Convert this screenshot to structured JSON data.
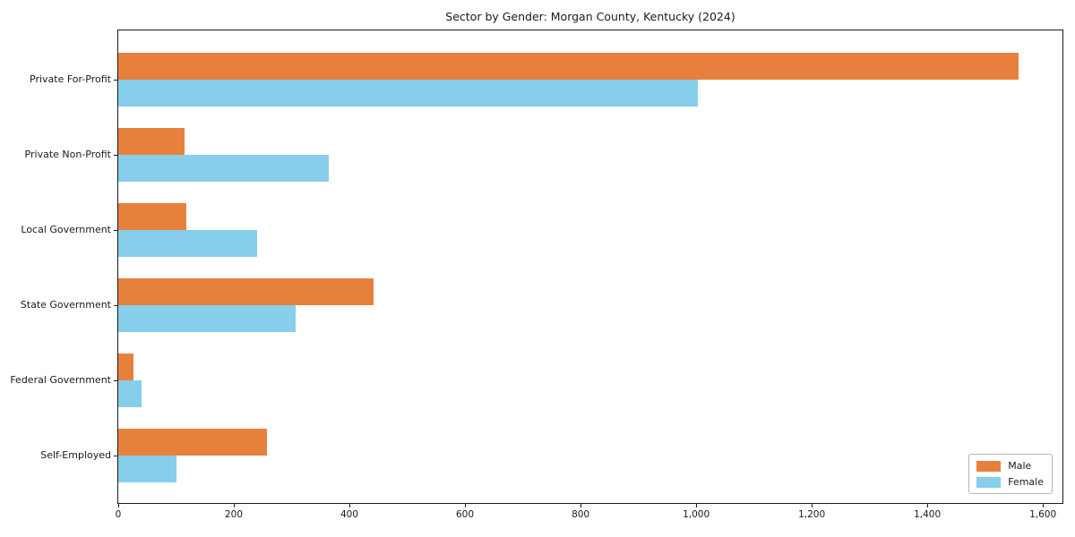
{
  "chart_data": {
    "type": "bar",
    "orientation": "horizontal",
    "title": "Sector by Gender: Morgan County, Kentucky (2024)",
    "categories": [
      "Private For-Profit",
      "Private Non-Profit",
      "Local Government",
      "State Government",
      "Federal Government",
      "Self-Employed"
    ],
    "series": [
      {
        "name": "Male",
        "color": "#e8803d",
        "values": [
          1558,
          115,
          118,
          442,
          26,
          257
        ]
      },
      {
        "name": "Female",
        "color": "#87ceeb",
        "values": [
          1003,
          364,
          240,
          307,
          41,
          100
        ]
      }
    ],
    "xlim": [
      0,
      1637
    ],
    "x_ticks": [
      0,
      200,
      400,
      600,
      800,
      1000,
      1200,
      1400,
      1600
    ],
    "x_tick_labels": [
      "0",
      "200",
      "400",
      "600",
      "800",
      "1,000",
      "1,200",
      "1,400",
      "1,600"
    ],
    "xlabel": "",
    "ylabel": "",
    "grid": false,
    "legend_position": "lower right"
  }
}
